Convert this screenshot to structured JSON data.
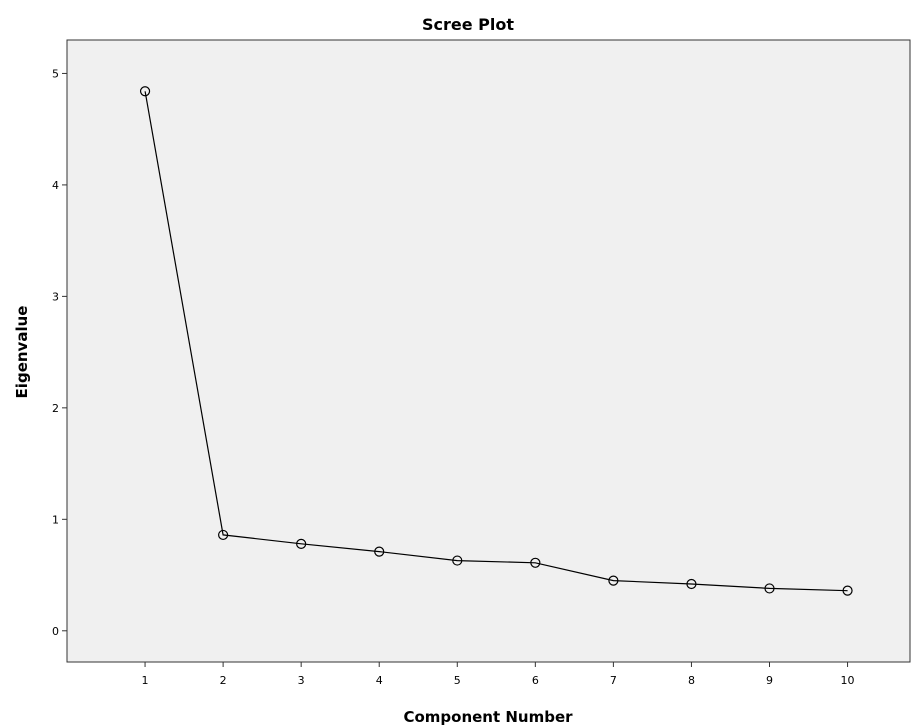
{
  "chart_data": {
    "type": "line",
    "title": "Scree Plot",
    "xlabel": "Component Number",
    "ylabel": "Eigenvalue",
    "x": [
      1,
      2,
      3,
      4,
      5,
      6,
      7,
      8,
      9,
      10
    ],
    "series": [
      {
        "values": [
          4.84,
          0.86,
          0.78,
          0.71,
          0.63,
          0.61,
          0.45,
          0.42,
          0.38,
          0.36
        ]
      }
    ],
    "xticks": [
      "1",
      "2",
      "3",
      "4",
      "5",
      "6",
      "7",
      "8",
      "9",
      "10"
    ],
    "yticks": [
      "0",
      "1",
      "2",
      "3",
      "4",
      "5"
    ],
    "xlim": [
      0.0,
      10.8
    ],
    "ylim": [
      -0.28,
      5.3
    ],
    "grid": false,
    "marker": "open-circle",
    "plot_background": "#f0f0f0",
    "line_color": "#000000"
  }
}
